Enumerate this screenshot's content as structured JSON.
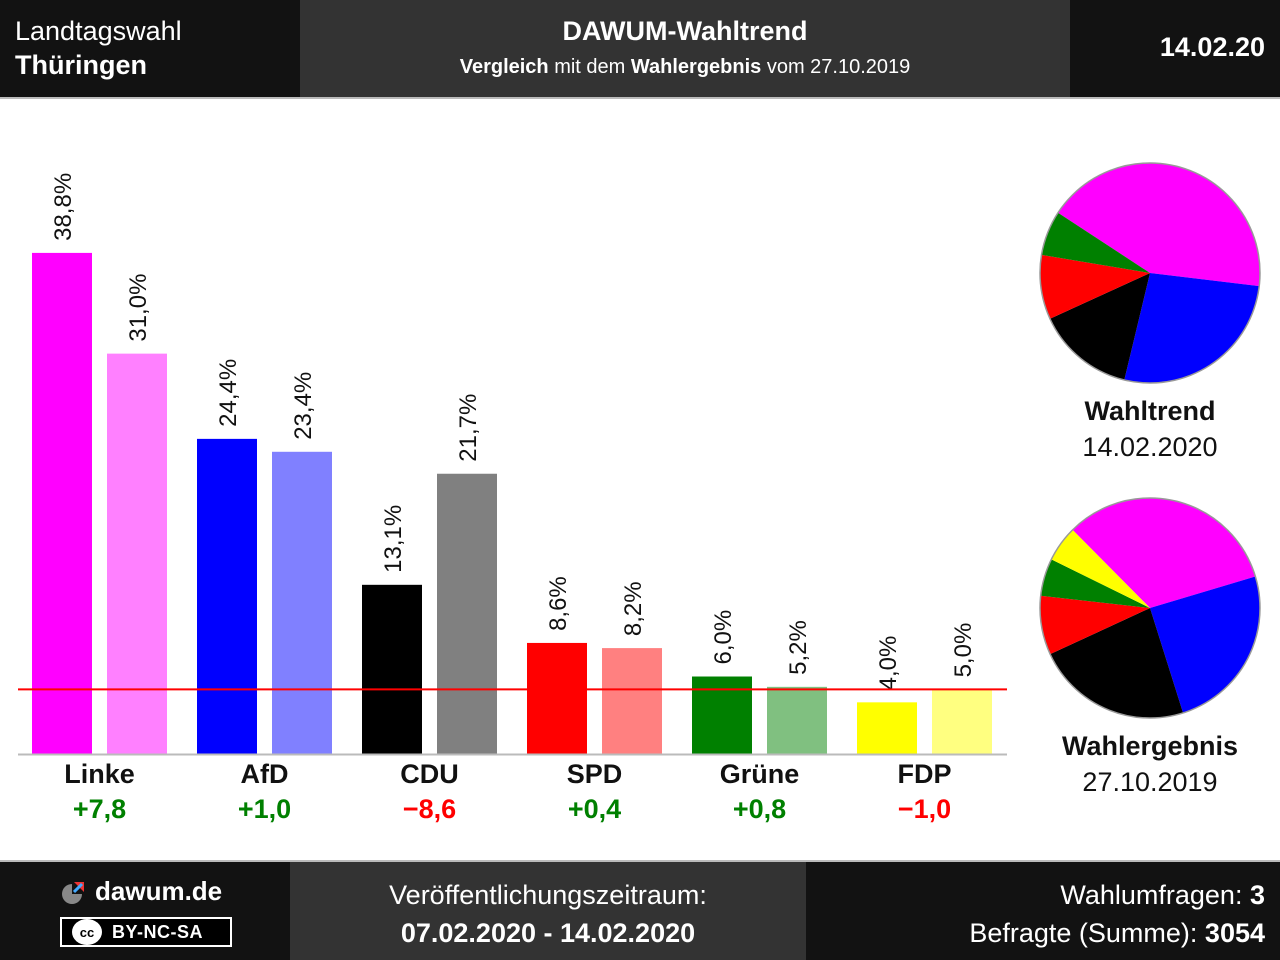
{
  "header": {
    "election_line1": "Landtagswahl",
    "election_line2": "Thüringen",
    "title": "DAWUM-Wahltrend",
    "subtitle_part1": "Vergleich",
    "subtitle_part2": " mit dem ",
    "subtitle_part3": "Wahlergebnis",
    "subtitle_part4": " vom 27.10.2019",
    "date": "14.02.20"
  },
  "chart_data": {
    "type": "bar",
    "categories": [
      "Linke",
      "AfD",
      "CDU",
      "SPD",
      "Grüne",
      "FDP"
    ],
    "series": [
      {
        "name": "Wahltrend",
        "values": [
          38.8,
          24.4,
          13.1,
          8.6,
          6.0,
          4.0
        ],
        "labels": [
          "38,8%",
          "24,4%",
          "13,1%",
          "8,6%",
          "6,0%",
          "4,0%"
        ]
      },
      {
        "name": "Wahlergebnis",
        "values": [
          31.0,
          23.4,
          21.7,
          8.2,
          5.2,
          5.0
        ],
        "labels": [
          "31,0%",
          "23,4%",
          "21,7%",
          "8,2%",
          "5,2%",
          "5,0%"
        ]
      }
    ],
    "changes": [
      "+7,8",
      "+1,0",
      "−8,6",
      "+0,4",
      "+0,8",
      "−1,0"
    ],
    "change_signs": [
      1,
      1,
      -1,
      1,
      1,
      -1
    ],
    "colors_trend": [
      "#ff00ff",
      "#0000ff",
      "#000000",
      "#ff0000",
      "#008000",
      "#ffff00"
    ],
    "colors_result": [
      "#ff80ff",
      "#8080ff",
      "#808080",
      "#ff8080",
      "#80c080",
      "#ffff80"
    ],
    "threshold": 5,
    "threshold_color": "#ff0000",
    "positive_color": "#008000",
    "negative_color": "#ff0000",
    "ylim": [
      0,
      40
    ]
  },
  "pies": [
    {
      "caption_bold": "Wahltrend",
      "caption_date": "14.02.2020",
      "slices": [
        {
          "party": "Linke",
          "value": 38.8,
          "color": "#ff00ff"
        },
        {
          "party": "AfD",
          "value": 24.4,
          "color": "#0000ff"
        },
        {
          "party": "CDU",
          "value": 13.1,
          "color": "#000000"
        },
        {
          "party": "SPD",
          "value": 8.6,
          "color": "#ff0000"
        },
        {
          "party": "Grüne",
          "value": 6.0,
          "color": "#008000"
        }
      ]
    },
    {
      "caption_bold": "Wahlergebnis",
      "caption_date": "27.10.2019",
      "slices": [
        {
          "party": "Linke",
          "value": 31.0,
          "color": "#ff00ff"
        },
        {
          "party": "AfD",
          "value": 23.4,
          "color": "#0000ff"
        },
        {
          "party": "CDU",
          "value": 21.7,
          "color": "#000000"
        },
        {
          "party": "SPD",
          "value": 8.2,
          "color": "#ff0000"
        },
        {
          "party": "Grüne",
          "value": 5.2,
          "color": "#008000"
        },
        {
          "party": "FDP",
          "value": 5.0,
          "color": "#ffff00"
        }
      ]
    }
  ],
  "footer": {
    "site": "dawum.de",
    "license": "BY-NC-SA",
    "license_icon": "cc",
    "period_label": "Veröffentlichungszeitraum:",
    "period": "07.02.2020 - 14.02.2020",
    "polls_label": "Wahlumfragen: ",
    "polls_value": "3",
    "respondents_label": "Befragte (Summe): ",
    "respondents_value": "3054"
  }
}
